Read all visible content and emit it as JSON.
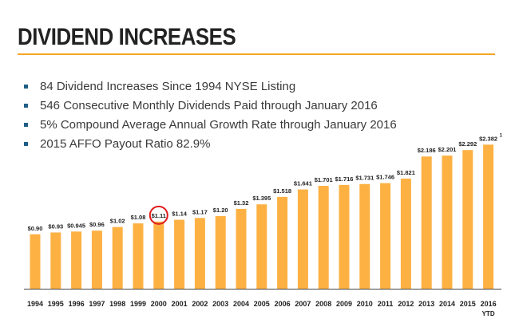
{
  "page": {
    "title": "DIVIDEND INCREASES",
    "bullets": [
      "84 Dividend Increases Since 1994 NYSE Listing",
      "546 Consecutive Monthly Dividends Paid through January 2016",
      "5% Compound Average Annual Growth Rate through January 2016",
      "2015 AFFO Payout Ratio 82.9%"
    ]
  },
  "colors": {
    "bar": "#FDB143",
    "accent_rule": "#F5A623",
    "bullet": "#1F5F87",
    "highlight_circle": "#E11A1A",
    "axis": "#444444",
    "text": "#222222"
  },
  "chart_data": {
    "type": "bar",
    "categories": [
      "1994",
      "1995",
      "1996",
      "1997",
      "1998",
      "1999",
      "2000",
      "2001",
      "2002",
      "2003",
      "2004",
      "2005",
      "2006",
      "2007",
      "2008",
      "2009",
      "2010",
      "2011",
      "2012",
      "2013",
      "2014",
      "2015",
      "2016"
    ],
    "category_sublabels": [
      "",
      "",
      "",
      "",
      "",
      "",
      "",
      "",
      "",
      "",
      "",
      "",
      "",
      "",
      "",
      "",
      "",
      "",
      "",
      "",
      "",
      "",
      "YTD"
    ],
    "values": [
      0.9,
      0.93,
      0.945,
      0.96,
      1.02,
      1.08,
      1.11,
      1.14,
      1.17,
      1.2,
      1.32,
      1.395,
      1.518,
      1.641,
      1.701,
      1.716,
      1.731,
      1.746,
      1.821,
      2.186,
      2.201,
      2.292,
      2.382
    ],
    "value_labels": [
      "$0.90",
      "$0.93",
      "$0.945",
      "$0.96",
      "$1.02",
      "$1.08",
      "$1.11",
      "$1.14",
      "$1.17",
      "$1.20",
      "$1.32",
      "$1.395",
      "$1.518",
      "$1.641",
      "$1.701",
      "$1.716",
      "$1.731",
      "$1.746",
      "$1.821",
      "$2.186",
      "$2.201",
      "$2.292",
      "$2.382"
    ],
    "footnote_marker": {
      "category": "2016",
      "text": "1"
    },
    "highlighted_category": "2000",
    "ylim": [
      0,
      2.4
    ],
    "grid": false,
    "legend": "none"
  }
}
